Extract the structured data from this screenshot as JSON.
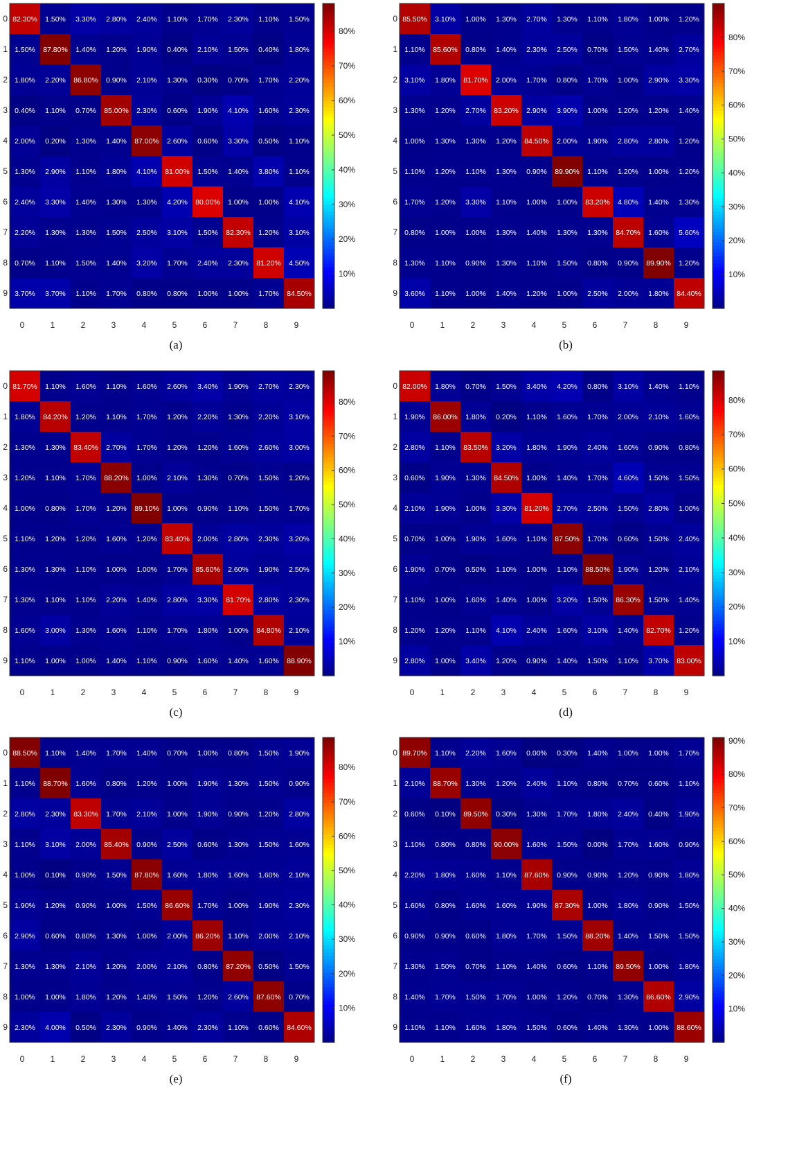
{
  "colormap": "jet",
  "text_color": "#ffffff",
  "chart_data": [
    {
      "type": "heatmap",
      "caption": "(a)",
      "categories": [
        "0",
        "1",
        "2",
        "3",
        "4",
        "5",
        "6",
        "7",
        "8",
        "9"
      ],
      "colorbar_ticks": [
        "10%",
        "20%",
        "30%",
        "40%",
        "50%",
        "60%",
        "70%",
        "80%"
      ],
      "colorbar_range": [
        0,
        88
      ],
      "matrix": [
        [
          82.3,
          1.5,
          3.3,
          2.8,
          2.4,
          1.1,
          1.7,
          2.3,
          1.1,
          1.5
        ],
        [
          1.5,
          87.8,
          1.4,
          1.2,
          1.9,
          0.4,
          2.1,
          1.5,
          0.4,
          1.8
        ],
        [
          1.8,
          2.2,
          86.8,
          0.9,
          2.1,
          1.3,
          0.3,
          0.7,
          1.7,
          2.2
        ],
        [
          0.4,
          1.1,
          0.7,
          85.0,
          2.3,
          0.6,
          1.9,
          4.1,
          1.6,
          2.3
        ],
        [
          2.0,
          0.2,
          1.3,
          1.4,
          87.0,
          2.6,
          0.6,
          3.3,
          0.5,
          1.1
        ],
        [
          1.3,
          2.9,
          1.1,
          1.8,
          4.1,
          81.0,
          1.5,
          1.4,
          3.8,
          1.1
        ],
        [
          2.4,
          3.3,
          1.4,
          1.3,
          1.3,
          4.2,
          80.0,
          1.0,
          1.0,
          4.1
        ],
        [
          2.2,
          1.3,
          1.3,
          1.5,
          2.5,
          3.1,
          1.5,
          82.3,
          1.2,
          3.1
        ],
        [
          0.7,
          1.1,
          1.5,
          1.4,
          3.2,
          1.7,
          2.4,
          2.3,
          81.2,
          4.5
        ],
        [
          3.7,
          3.7,
          1.1,
          1.7,
          0.8,
          0.8,
          1.0,
          1.0,
          1.7,
          84.5
        ]
      ]
    },
    {
      "type": "heatmap",
      "caption": "(b)",
      "categories": [
        "0",
        "1",
        "2",
        "3",
        "4",
        "5",
        "6",
        "7",
        "8",
        "9"
      ],
      "colorbar_ticks": [
        "10%",
        "20%",
        "30%",
        "40%",
        "50%",
        "60%",
        "70%",
        "80%"
      ],
      "colorbar_range": [
        0,
        90
      ],
      "matrix": [
        [
          85.5,
          3.1,
          1.0,
          1.3,
          2.7,
          1.3,
          1.1,
          1.8,
          1.0,
          1.2
        ],
        [
          1.1,
          85.6,
          0.8,
          1.4,
          2.3,
          2.5,
          0.7,
          1.5,
          1.4,
          2.7
        ],
        [
          3.1,
          1.8,
          81.7,
          2.0,
          1.7,
          0.8,
          1.7,
          1.0,
          2.9,
          3.3
        ],
        [
          1.3,
          1.2,
          2.7,
          83.2,
          2.9,
          3.9,
          1.0,
          1.2,
          1.2,
          1.4
        ],
        [
          1.0,
          1.3,
          1.3,
          1.2,
          84.5,
          2.0,
          1.9,
          2.8,
          2.8,
          1.2
        ],
        [
          1.1,
          1.2,
          1.1,
          1.3,
          0.9,
          89.9,
          1.1,
          1.2,
          1.0,
          1.2
        ],
        [
          1.7,
          1.2,
          3.3,
          1.1,
          1.0,
          1.0,
          83.2,
          4.8,
          1.4,
          1.3
        ],
        [
          0.8,
          1.0,
          1.0,
          1.3,
          1.4,
          1.3,
          1.3,
          84.7,
          1.6,
          5.6
        ],
        [
          1.3,
          1.1,
          0.9,
          1.3,
          1.1,
          1.5,
          0.8,
          0.9,
          89.9,
          1.2
        ],
        [
          3.6,
          1.1,
          1.0,
          1.4,
          1.2,
          1.0,
          2.5,
          2.0,
          1.8,
          84.4
        ]
      ]
    },
    {
      "type": "heatmap",
      "caption": "(c)",
      "categories": [
        "0",
        "1",
        "2",
        "3",
        "4",
        "5",
        "6",
        "7",
        "8",
        "9"
      ],
      "colorbar_ticks": [
        "10%",
        "20%",
        "30%",
        "40%",
        "50%",
        "60%",
        "70%",
        "80%"
      ],
      "colorbar_range": [
        0,
        89.1
      ],
      "matrix": [
        [
          81.7,
          1.1,
          1.6,
          1.1,
          1.6,
          2.6,
          3.4,
          1.9,
          2.7,
          2.3
        ],
        [
          1.8,
          84.2,
          1.2,
          1.1,
          1.7,
          1.2,
          2.2,
          1.3,
          2.2,
          3.1
        ],
        [
          1.3,
          1.3,
          83.4,
          2.7,
          1.7,
          1.2,
          1.2,
          1.6,
          2.6,
          3.0
        ],
        [
          1.2,
          1.1,
          1.7,
          88.2,
          1.0,
          2.1,
          1.3,
          0.7,
          1.5,
          1.2
        ],
        [
          1.0,
          0.8,
          1.7,
          1.2,
          89.1,
          1.0,
          0.9,
          1.1,
          1.5,
          1.7
        ],
        [
          1.1,
          1.2,
          1.2,
          1.6,
          1.2,
          83.4,
          2.0,
          2.8,
          2.3,
          3.2
        ],
        [
          1.3,
          1.3,
          1.1,
          1.0,
          1.0,
          1.7,
          85.6,
          2.6,
          1.9,
          2.5
        ],
        [
          1.3,
          1.1,
          1.1,
          2.2,
          1.4,
          2.8,
          3.3,
          81.7,
          2.8,
          2.3
        ],
        [
          1.6,
          3.0,
          1.3,
          1.6,
          1.1,
          1.7,
          1.8,
          1.0,
          84.8,
          2.1
        ],
        [
          1.1,
          1.0,
          1.0,
          1.4,
          1.1,
          0.9,
          1.6,
          1.4,
          1.6,
          88.9
        ]
      ]
    },
    {
      "type": "heatmap",
      "caption": "(d)",
      "categories": [
        "0",
        "1",
        "2",
        "3",
        "4",
        "5",
        "6",
        "7",
        "8",
        "9"
      ],
      "colorbar_ticks": [
        "10%",
        "20%",
        "30%",
        "40%",
        "50%",
        "60%",
        "70%",
        "80%"
      ],
      "colorbar_range": [
        0,
        88.5
      ],
      "matrix": [
        [
          82.0,
          1.8,
          0.7,
          1.5,
          3.4,
          4.2,
          0.8,
          3.1,
          1.4,
          1.1
        ],
        [
          1.9,
          86.0,
          1.8,
          0.2,
          1.1,
          1.6,
          1.7,
          2.0,
          2.1,
          1.6
        ],
        [
          2.8,
          1.1,
          83.5,
          3.2,
          1.8,
          1.9,
          2.4,
          1.6,
          0.9,
          0.8
        ],
        [
          0.6,
          1.9,
          1.3,
          84.5,
          1.0,
          1.4,
          1.7,
          4.6,
          1.5,
          1.5
        ],
        [
          2.1,
          1.9,
          1.0,
          3.3,
          81.2,
          2.7,
          2.5,
          1.5,
          2.8,
          1.0
        ],
        [
          0.7,
          1.0,
          1.9,
          1.6,
          1.1,
          87.5,
          1.7,
          0.6,
          1.5,
          2.4
        ],
        [
          1.9,
          0.7,
          0.5,
          1.1,
          1.0,
          1.1,
          88.5,
          1.9,
          1.2,
          2.1
        ],
        [
          1.1,
          1.0,
          1.6,
          1.4,
          1.0,
          3.2,
          1.5,
          86.3,
          1.5,
          1.4
        ],
        [
          1.2,
          1.2,
          1.1,
          4.1,
          2.4,
          1.6,
          3.1,
          1.4,
          82.7,
          1.2
        ],
        [
          2.8,
          1.0,
          3.4,
          1.2,
          0.9,
          1.4,
          1.5,
          1.1,
          3.7,
          83.0
        ]
      ]
    },
    {
      "type": "heatmap",
      "caption": "(e)",
      "categories": [
        "0",
        "1",
        "2",
        "3",
        "4",
        "5",
        "6",
        "7",
        "8",
        "9"
      ],
      "colorbar_ticks": [
        "10%",
        "20%",
        "30%",
        "40%",
        "50%",
        "60%",
        "70%",
        "80%"
      ],
      "colorbar_range": [
        0,
        88.7
      ],
      "matrix": [
        [
          88.5,
          1.1,
          1.4,
          1.7,
          1.4,
          0.7,
          1.0,
          0.8,
          1.5,
          1.9
        ],
        [
          1.1,
          88.7,
          1.6,
          0.8,
          1.2,
          1.0,
          1.9,
          1.3,
          1.5,
          0.9
        ],
        [
          2.8,
          2.3,
          83.3,
          1.7,
          2.1,
          1.0,
          1.9,
          0.9,
          1.2,
          2.8
        ],
        [
          1.1,
          3.1,
          2.0,
          85.4,
          0.9,
          2.5,
          0.6,
          1.3,
          1.5,
          1.6
        ],
        [
          1.0,
          0.1,
          0.9,
          1.5,
          87.8,
          1.6,
          1.8,
          1.6,
          1.6,
          2.1
        ],
        [
          1.9,
          1.2,
          0.9,
          1.0,
          1.5,
          86.6,
          1.7,
          1.0,
          1.9,
          2.3
        ],
        [
          2.9,
          0.6,
          0.8,
          1.3,
          1.0,
          2.0,
          86.2,
          1.1,
          2.0,
          2.1
        ],
        [
          1.3,
          1.3,
          2.1,
          1.2,
          2.0,
          2.1,
          0.8,
          87.2,
          0.5,
          1.5
        ],
        [
          1.0,
          1.0,
          1.8,
          1.2,
          1.4,
          1.5,
          1.2,
          2.6,
          87.6,
          0.7
        ],
        [
          2.3,
          4.0,
          0.5,
          2.3,
          0.9,
          1.4,
          2.3,
          1.1,
          0.6,
          84.6
        ]
      ]
    },
    {
      "type": "heatmap",
      "caption": "(f)",
      "categories": [
        "0",
        "1",
        "2",
        "3",
        "4",
        "5",
        "6",
        "7",
        "8",
        "9"
      ],
      "colorbar_ticks": [
        "10%",
        "20%",
        "30%",
        "40%",
        "50%",
        "60%",
        "70%",
        "80%",
        "90%"
      ],
      "colorbar_range": [
        0,
        91
      ],
      "matrix": [
        [
          89.7,
          1.1,
          2.2,
          1.6,
          0.0,
          0.3,
          1.4,
          1.0,
          1.0,
          1.7
        ],
        [
          2.1,
          88.7,
          1.3,
          1.2,
          2.4,
          1.1,
          0.8,
          0.7,
          0.6,
          1.1
        ],
        [
          0.6,
          0.1,
          89.5,
          0.3,
          1.3,
          1.7,
          1.8,
          2.4,
          0.4,
          1.9
        ],
        [
          1.1,
          0.8,
          0.8,
          90.0,
          1.6,
          1.5,
          0.0,
          1.7,
          1.6,
          0.9
        ],
        [
          2.2,
          1.8,
          1.6,
          1.1,
          87.6,
          0.9,
          0.9,
          1.2,
          0.9,
          1.8
        ],
        [
          1.6,
          0.8,
          1.6,
          1.6,
          1.9,
          87.3,
          1.0,
          1.8,
          0.9,
          1.5
        ],
        [
          0.9,
          0.9,
          0.6,
          1.8,
          1.7,
          1.5,
          88.2,
          1.4,
          1.5,
          1.5
        ],
        [
          1.3,
          1.5,
          0.7,
          1.1,
          1.4,
          0.6,
          1.1,
          89.5,
          1.0,
          1.8
        ],
        [
          1.4,
          1.7,
          1.5,
          1.7,
          1.0,
          1.2,
          0.7,
          1.3,
          86.6,
          2.9
        ],
        [
          1.1,
          1.1,
          1.6,
          1.8,
          1.5,
          0.6,
          1.4,
          1.3,
          1.0,
          88.6
        ]
      ]
    }
  ]
}
